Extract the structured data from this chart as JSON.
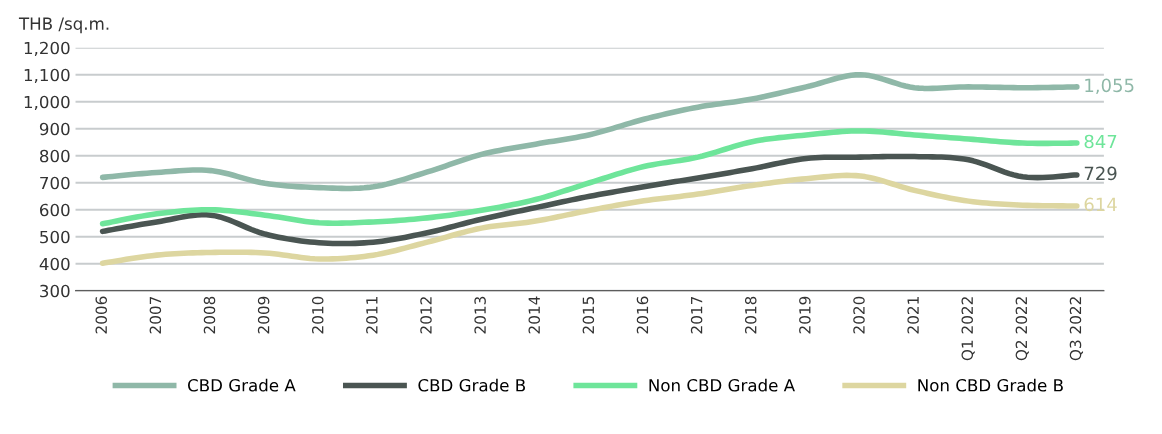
{
  "chart_data": {
    "type": "line",
    "ylabel": "THB /sq.m.",
    "categories": [
      "2006",
      "2007",
      "2008",
      "2009",
      "2010",
      "2011",
      "2012",
      "2013",
      "2014",
      "2015",
      "2016",
      "2017",
      "2018",
      "2019",
      "2020",
      "2021",
      "Q1 2022",
      "Q2 2022",
      "Q3 2022"
    ],
    "series": [
      {
        "name": "CBD Grade A",
        "color": "#8fb8a8",
        "values": [
          720,
          738,
          745,
          698,
          682,
          685,
          740,
          805,
          843,
          878,
          935,
          980,
          1010,
          1055,
          1100,
          1052,
          1055,
          1052,
          1055
        ],
        "value_labels": [
          null,
          null,
          null,
          null,
          null,
          null,
          null,
          null,
          null,
          null,
          null,
          null,
          null,
          null,
          null,
          null,
          null,
          null,
          "1,055"
        ]
      },
      {
        "name": "CBD Grade B",
        "color": "#4a5552",
        "values": [
          520,
          555,
          580,
          510,
          478,
          480,
          515,
          565,
          608,
          650,
          685,
          718,
          752,
          790,
          795,
          797,
          785,
          722,
          729
        ],
        "value_labels": [
          null,
          null,
          null,
          null,
          null,
          null,
          null,
          null,
          null,
          null,
          null,
          null,
          null,
          null,
          null,
          null,
          null,
          null,
          "729"
        ]
      },
      {
        "name": "Non CBD Grade A",
        "color": "#6ee59a",
        "values": [
          548,
          585,
          600,
          580,
          552,
          555,
          570,
          598,
          638,
          700,
          760,
          795,
          852,
          877,
          892,
          877,
          862,
          847,
          847
        ],
        "value_labels": [
          null,
          null,
          null,
          null,
          null,
          null,
          null,
          null,
          null,
          null,
          null,
          null,
          null,
          null,
          null,
          null,
          null,
          null,
          "847"
        ]
      },
      {
        "name": "Non CBD Grade B",
        "color": "#ddd6a0",
        "values": [
          402,
          432,
          442,
          440,
          418,
          432,
          480,
          532,
          558,
          598,
          633,
          658,
          690,
          715,
          725,
          672,
          632,
          617,
          614
        ],
        "value_labels": [
          null,
          null,
          null,
          null,
          null,
          null,
          null,
          null,
          null,
          null,
          null,
          null,
          null,
          null,
          null,
          null,
          null,
          null,
          "614"
        ]
      }
    ],
    "ylim": [
      300,
      1200
    ],
    "yticks": [
      300,
      400,
      500,
      600,
      700,
      800,
      900,
      {
        "value": 1000,
        "label": "1,000"
      },
      {
        "value": 1100,
        "label": "1,100"
      },
      {
        "value": 1200,
        "label": "1,200"
      }
    ],
    "grid": "y",
    "legend": "bottom",
    "marker": "none",
    "line_style": "solid"
  }
}
